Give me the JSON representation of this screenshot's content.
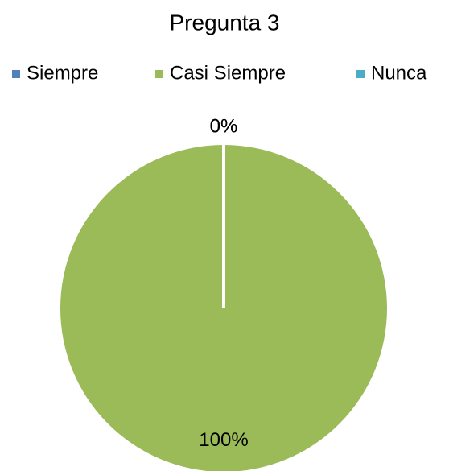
{
  "chart_data": {
    "type": "pie",
    "title": "Pregunta 3",
    "categories": [
      "Siempre",
      "Casi Siempre",
      "Nunca"
    ],
    "values": [
      0,
      100,
      0
    ],
    "value_labels": [
      "0%",
      "100%",
      "0%"
    ],
    "colors": [
      "#4f81bd",
      "#9bbb59",
      "#4bacc6"
    ],
    "legend": "top"
  }
}
